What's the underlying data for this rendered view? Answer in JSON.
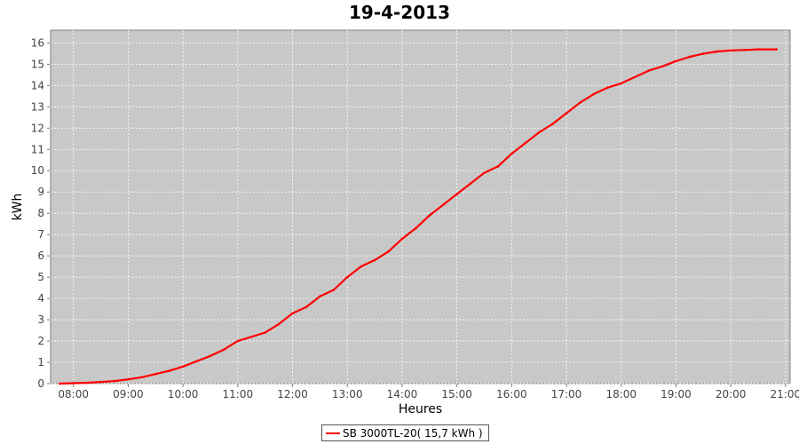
{
  "chart_data": {
    "type": "line",
    "title": "19-4-2013",
    "xlabel": "Heures",
    "ylabel": "kWh",
    "xlim": [
      "07:35",
      "21:05"
    ],
    "ylim": [
      0,
      16.6
    ],
    "x_ticks": [
      "08:00",
      "09:00",
      "10:00",
      "11:00",
      "12:00",
      "13:00",
      "14:00",
      "15:00",
      "16:00",
      "17:00",
      "18:00",
      "19:00",
      "20:00",
      "21:00"
    ],
    "y_ticks": [
      "0",
      "1",
      "2",
      "3",
      "4",
      "5",
      "6",
      "7",
      "8",
      "9",
      "10",
      "11",
      "12",
      "13",
      "14",
      "15",
      "16"
    ],
    "grid": true,
    "legend_position": "bottom",
    "series": [
      {
        "name": "SB 3000TL-20( 15,7 kWh )",
        "color": "#ff0000",
        "x": [
          "07:45",
          "08:00",
          "08:15",
          "08:30",
          "08:45",
          "09:00",
          "09:15",
          "09:30",
          "09:45",
          "10:00",
          "10:15",
          "10:30",
          "10:45",
          "11:00",
          "11:15",
          "11:30",
          "11:45",
          "12:00",
          "12:15",
          "12:30",
          "12:45",
          "13:00",
          "13:15",
          "13:30",
          "13:45",
          "14:00",
          "14:15",
          "14:30",
          "14:45",
          "15:00",
          "15:15",
          "15:30",
          "15:45",
          "16:00",
          "16:15",
          "16:30",
          "16:45",
          "17:00",
          "17:15",
          "17:30",
          "17:45",
          "18:00",
          "18:15",
          "18:30",
          "18:45",
          "19:00",
          "19:15",
          "19:30",
          "19:45",
          "20:00",
          "20:15",
          "20:30",
          "20:50"
        ],
        "y": [
          0.0,
          0.02,
          0.04,
          0.08,
          0.12,
          0.2,
          0.3,
          0.45,
          0.6,
          0.8,
          1.05,
          1.3,
          1.6,
          2.0,
          2.2,
          2.4,
          2.8,
          3.3,
          3.6,
          4.1,
          4.4,
          5.0,
          5.5,
          5.8,
          6.2,
          6.8,
          7.3,
          7.9,
          8.4,
          8.9,
          9.4,
          9.9,
          10.2,
          10.8,
          11.3,
          11.8,
          12.2,
          12.7,
          13.2,
          13.6,
          13.9,
          14.1,
          14.4,
          14.7,
          14.9,
          15.15,
          15.35,
          15.5,
          15.6,
          15.65,
          15.67,
          15.7,
          15.7
        ]
      }
    ]
  }
}
